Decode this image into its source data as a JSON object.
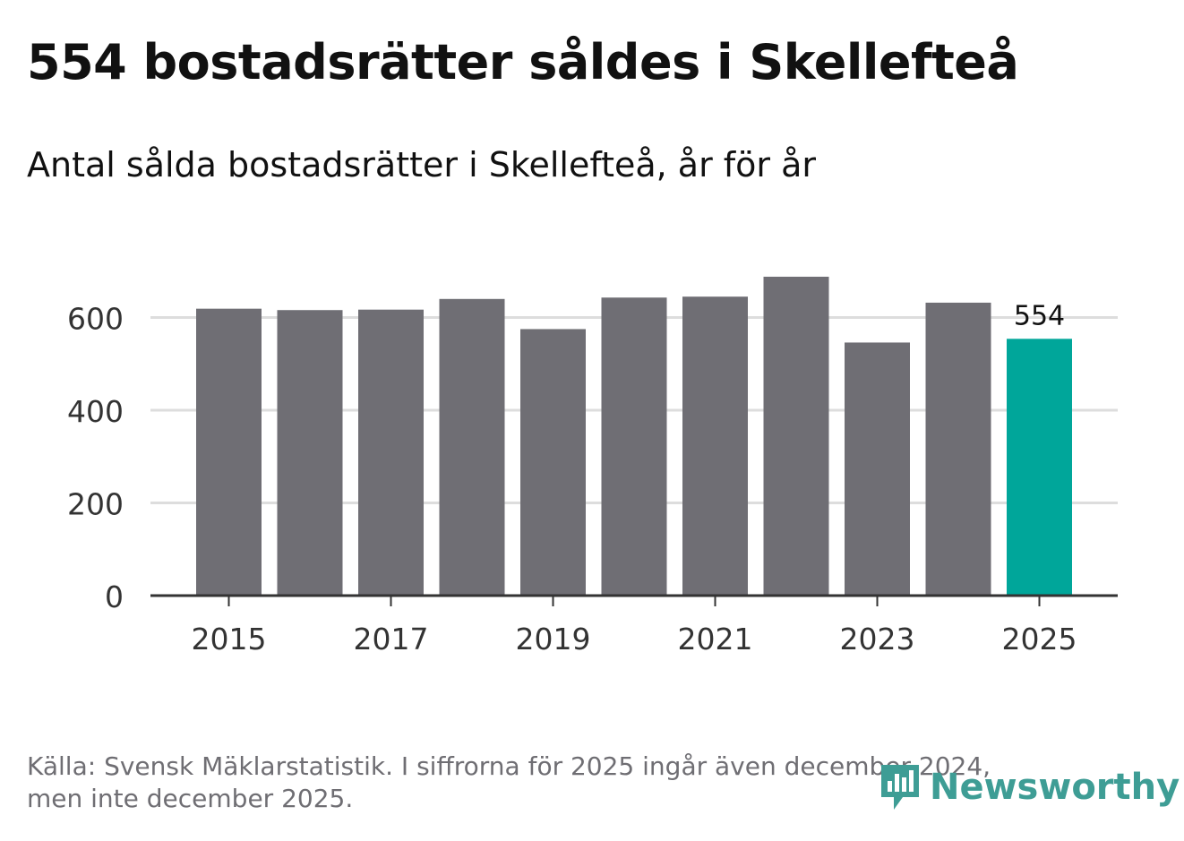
{
  "title": "554 bostadsrätter såldes i Skellefteå",
  "subtitle": "Antal sålda bostadsrätter i Skellefteå, år för år",
  "chart_data": {
    "type": "bar",
    "categories": [
      "2015",
      "2016",
      "2017",
      "2018",
      "2019",
      "2020",
      "2021",
      "2022",
      "2023",
      "2024",
      "2025"
    ],
    "values": [
      619,
      616,
      617,
      640,
      575,
      643,
      645,
      688,
      546,
      632,
      554
    ],
    "xticks": [
      "2015",
      "2017",
      "2019",
      "2021",
      "2023",
      "2025"
    ],
    "yticks": [
      0,
      200,
      400,
      600
    ],
    "ylim": [
      0,
      700
    ],
    "annotation": {
      "category": "2025",
      "label": "554"
    },
    "colors": {
      "bar": "#6f6e74",
      "highlight": "#00a69a",
      "grid": "#dddddd",
      "axis": "#333333"
    }
  },
  "footer": {
    "line1": "Källa: Svensk Mäklarstatistik. I siffrorna för 2025 ingår även december 2024,",
    "line2": "men inte december 2025."
  },
  "logo": {
    "text": "Newsworthy",
    "icon": "newsworthy-logo-icon",
    "color": "#3e9d95"
  }
}
